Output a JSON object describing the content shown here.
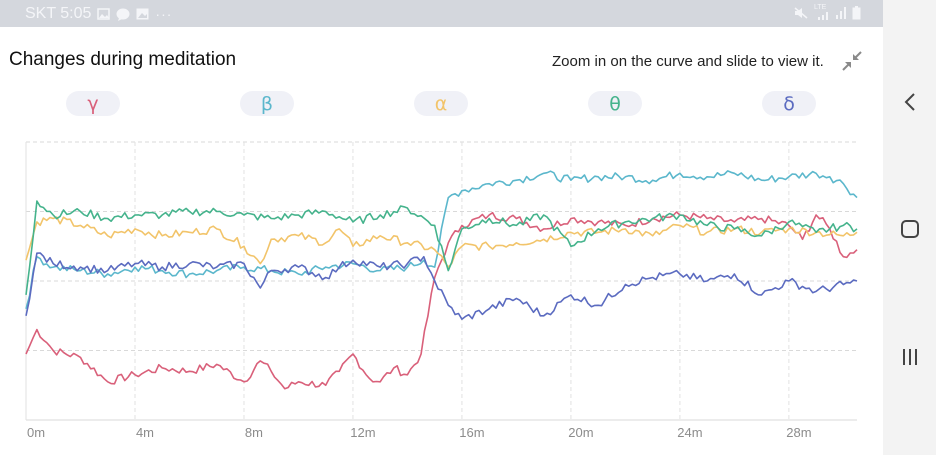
{
  "status_bar": {
    "time": "SKT 5:05",
    "left_icons": [
      "image-icon",
      "chat-icon",
      "gallery-icon",
      "more-dots-icon"
    ],
    "right_icons": [
      "mute-icon",
      "lte-signal-icon",
      "signal-icon",
      "battery-icon"
    ],
    "lte_label": "LTE"
  },
  "header": {
    "title": "Changes during meditation",
    "hint": "Zoom in on the curve and slide to view it.",
    "collapse_icon": "collapse-icon"
  },
  "tabs": [
    {
      "label": "γ",
      "color": "#d9607a"
    },
    {
      "label": "β",
      "color": "#5bb7cc"
    },
    {
      "label": "α",
      "color": "#f2c46a"
    },
    {
      "label": "θ",
      "color": "#45b38c"
    },
    {
      "label": "δ",
      "color": "#5b6bc0"
    }
  ],
  "nav_bar": {
    "icons": [
      "back-icon",
      "home-icon",
      "recents-icon"
    ]
  },
  "chart_data": {
    "type": "line",
    "x_unit": "minutes",
    "xlim": [
      0,
      30.5
    ],
    "ylim": [
      0,
      4
    ],
    "x_ticks": [
      0,
      4,
      8,
      12,
      16,
      20,
      24,
      28
    ],
    "x_tick_labels": [
      "0m",
      "4m",
      "8m",
      "12m",
      "16m",
      "20m",
      "24m",
      "28m"
    ],
    "grid": true,
    "series": [
      {
        "name": "γ",
        "color": "#d9607a",
        "x": [
          0,
          0.4,
          1,
          2,
          3,
          4,
          5,
          6,
          7,
          8,
          8.6,
          9,
          9.5,
          10,
          11,
          11.5,
          12,
          12.6,
          13,
          13.5,
          14,
          14.5,
          15,
          15.5,
          16,
          17,
          18,
          19,
          20,
          21,
          22,
          23,
          24,
          25,
          26,
          27,
          28,
          28.5,
          29,
          29.5,
          30,
          30.5
        ],
        "y": [
          0.95,
          1.3,
          1.0,
          0.9,
          0.55,
          0.65,
          0.75,
          0.7,
          0.8,
          0.55,
          0.85,
          0.7,
          0.45,
          0.55,
          0.5,
          0.7,
          0.95,
          0.6,
          0.55,
          0.75,
          0.65,
          0.95,
          2.05,
          2.55,
          2.8,
          2.95,
          2.9,
          2.75,
          2.9,
          2.85,
          2.8,
          2.9,
          2.95,
          2.9,
          2.85,
          2.9,
          2.8,
          2.6,
          2.95,
          2.75,
          2.35,
          2.45
        ]
      },
      {
        "name": "β",
        "color": "#5bb7cc",
        "x": [
          0,
          0.4,
          1,
          2,
          3,
          4,
          5,
          6,
          7,
          8,
          9,
          10,
          11,
          12,
          13,
          14,
          14.6,
          15,
          15.5,
          16,
          17,
          18,
          19,
          20,
          21,
          22,
          23,
          24,
          25,
          26,
          27,
          28,
          29,
          29.5,
          30,
          30.5
        ],
        "y": [
          1.6,
          2.35,
          2.2,
          2.15,
          2.1,
          2.2,
          2.15,
          2.1,
          2.15,
          2.2,
          2.15,
          2.1,
          2.2,
          2.25,
          2.15,
          2.2,
          2.3,
          2.2,
          3.2,
          3.3,
          3.4,
          3.45,
          3.55,
          3.45,
          3.5,
          3.5,
          3.45,
          3.55,
          3.5,
          3.55,
          3.45,
          3.5,
          3.55,
          3.5,
          3.4,
          3.2
        ]
      },
      {
        "name": "α",
        "color": "#f2c46a",
        "x": [
          0,
          0.4,
          1,
          2,
          3,
          4,
          5,
          6,
          7,
          8,
          8.6,
          9,
          10,
          11,
          11.5,
          12,
          13,
          14,
          15,
          15.5,
          16,
          17,
          18,
          19,
          20,
          21,
          22,
          23,
          24,
          25,
          26,
          27,
          28,
          29,
          30,
          30.5
        ],
        "y": [
          2.3,
          2.85,
          2.9,
          2.8,
          2.65,
          2.75,
          2.65,
          2.7,
          2.75,
          2.5,
          2.25,
          2.6,
          2.65,
          2.55,
          2.75,
          2.5,
          2.65,
          2.55,
          2.45,
          2.2,
          2.5,
          2.5,
          2.55,
          2.6,
          2.7,
          2.7,
          2.75,
          2.65,
          2.8,
          2.7,
          2.75,
          2.7,
          2.75,
          2.7,
          2.65,
          2.7
        ]
      },
      {
        "name": "θ",
        "color": "#45b38c",
        "x": [
          0,
          0.4,
          1,
          2,
          3,
          4,
          5,
          6,
          7,
          8,
          9,
          10,
          11,
          12,
          13,
          14,
          15,
          15.5,
          16,
          17,
          18,
          19,
          20,
          21,
          22,
          23,
          24,
          25,
          26,
          27,
          28,
          29,
          30,
          30.5
        ],
        "y": [
          1.8,
          3.15,
          2.95,
          3.0,
          2.9,
          2.95,
          2.95,
          3.0,
          3.0,
          2.95,
          2.9,
          2.95,
          3.0,
          2.85,
          2.95,
          3.05,
          2.8,
          2.15,
          2.75,
          2.9,
          2.8,
          2.95,
          2.5,
          2.75,
          2.85,
          2.9,
          2.95,
          2.8,
          2.75,
          2.65,
          2.85,
          2.7,
          2.8,
          2.75
        ]
      },
      {
        "name": "δ",
        "color": "#5b6bc0",
        "x": [
          0,
          0.4,
          1,
          2,
          3,
          4,
          5,
          6,
          7,
          8,
          8.6,
          9,
          10,
          11,
          11.5,
          12,
          13,
          14,
          14.6,
          15,
          15.5,
          16,
          17,
          18,
          19,
          20,
          21,
          22,
          23,
          24,
          25,
          26,
          27,
          28,
          29,
          30,
          30.5
        ],
        "y": [
          1.5,
          2.4,
          2.25,
          2.2,
          2.15,
          2.25,
          2.2,
          2.25,
          2.2,
          2.25,
          1.9,
          2.15,
          2.2,
          2.05,
          2.2,
          2.3,
          2.2,
          2.25,
          2.35,
          2.0,
          1.65,
          1.45,
          1.6,
          1.75,
          1.5,
          1.8,
          1.65,
          1.95,
          2.05,
          2.1,
          2.0,
          2.1,
          1.8,
          2.0,
          1.85,
          1.95,
          2.0
        ]
      }
    ]
  }
}
